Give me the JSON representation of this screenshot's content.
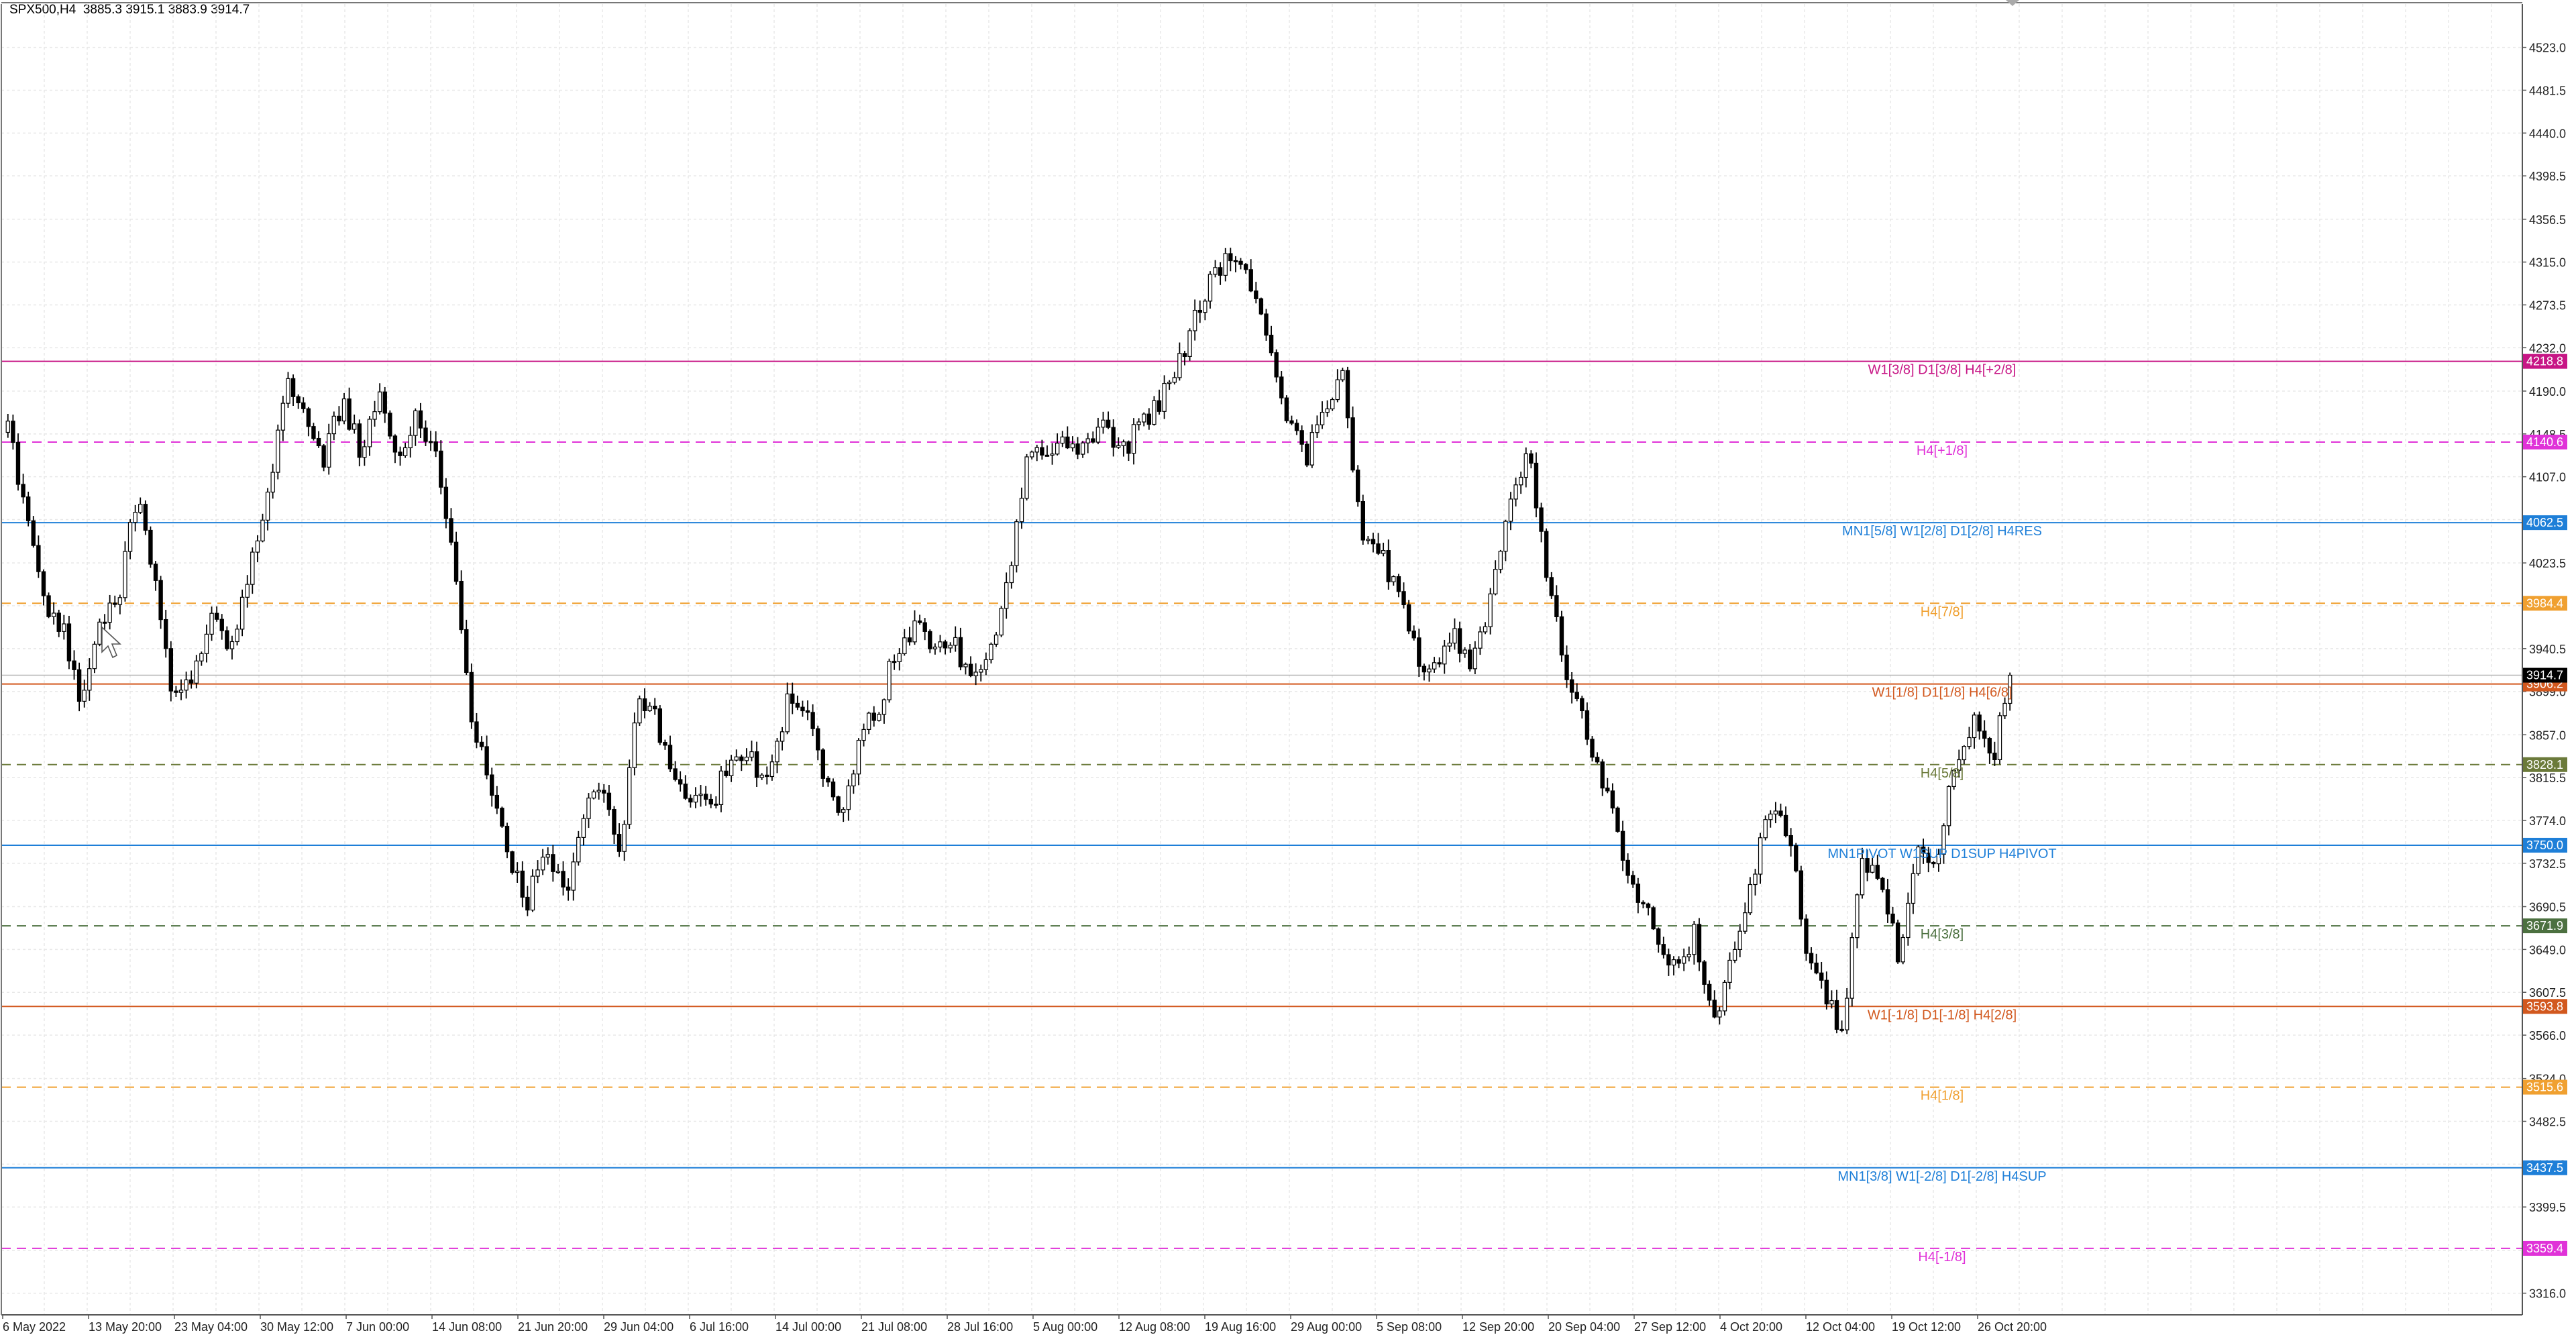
{
  "header": {
    "symbol": "SPX500,H4",
    "open": "3885.3",
    "high": "3915.1",
    "low": "3883.9",
    "close": "3914.7"
  },
  "chart_data": {
    "type": "candlestick",
    "symbol": "SPX500",
    "timeframe": "H4",
    "grid": true,
    "ylim": [
      3295,
      4565
    ],
    "y_ticks": [
      "4523.0",
      "4481.5",
      "4440.0",
      "4398.5",
      "4356.5",
      "4315.0",
      "4273.5",
      "4232.0",
      "4190.0",
      "4148.5",
      "4107.0",
      "4065.5",
      "4023.5",
      "3982.0",
      "3940.5",
      "3899.0",
      "3857.0",
      "3815.5",
      "3774.0",
      "3732.5",
      "3690.5",
      "3649.0",
      "3607.5",
      "3566.0",
      "3524.0",
      "3482.5",
      "3441.0",
      "3399.5",
      "3357.5",
      "3316.0"
    ],
    "x_labels": [
      "6 May 2022",
      "13 May 20:00",
      "23 May 04:00",
      "30 May 12:00",
      "7 Jun 00:00",
      "14 Jun 08:00",
      "21 Jun 20:00",
      "29 Jun 04:00",
      "6 Jul 16:00",
      "14 Jul 00:00",
      "21 Jul 08:00",
      "28 Jul 16:00",
      "5 Aug 00:00",
      "12 Aug 08:00",
      "19 Aug 16:00",
      "29 Aug 00:00",
      "5 Sep 08:00",
      "12 Sep 20:00",
      "20 Sep 04:00",
      "27 Sep 12:00",
      "4 Oct 20:00",
      "12 Oct 04:00",
      "19 Oct 12:00",
      "26 Oct 20:00"
    ],
    "price_path": [
      4150,
      4075,
      3985,
      3960,
      3880,
      3960,
      3995,
      4095,
      4000,
      3885,
      3920,
      3965,
      3940,
      4020,
      4080,
      4195,
      4170,
      4120,
      4180,
      4135,
      4185,
      4125,
      4165,
      4130,
      4035,
      3880,
      3800,
      3740,
      3690,
      3755,
      3700,
      3775,
      3805,
      3735,
      3890,
      3870,
      3815,
      3795,
      3790,
      3840,
      3840,
      3805,
      3890,
      3885,
      3815,
      3785,
      3855,
      3885,
      3945,
      3960,
      3935,
      3945,
      3905,
      3940,
      4005,
      4125,
      4125,
      4145,
      4135,
      4165,
      4125,
      4155,
      4175,
      4205,
      4265,
      4300,
      4325,
      4290,
      4245,
      4160,
      4125,
      4175,
      4205,
      4055,
      4035,
      3990,
      3935,
      3915,
      3955,
      3925,
      3990,
      4075,
      4140,
      4015,
      3925,
      3865,
      3815,
      3745,
      3700,
      3660,
      3625,
      3665,
      3580,
      3635,
      3705,
      3785,
      3765,
      3655,
      3610,
      3565,
      3745,
      3705,
      3645,
      3755,
      3735,
      3825,
      3875,
      3825,
      3915
    ],
    "current_price": "3914.7",
    "levels": [
      {
        "price": 4218.8,
        "label": "W1[3/8] D1[3/8] H4[+2/8]",
        "tag": "4218.8",
        "color": "#c71585",
        "style": "solid"
      },
      {
        "price": 4140.6,
        "label": "H4[+1/8]",
        "tag": "4140.6",
        "color": "#e032d8",
        "style": "dashed"
      },
      {
        "price": 4062.5,
        "label": "MN1[5/8] W1[2/8] D1[2/8] H4RES",
        "tag": "4062.5",
        "color": "#1e7fd8",
        "style": "solid"
      },
      {
        "price": 3984.4,
        "label": "H4[7/8]",
        "tag": "3984.4",
        "color": "#f0a030",
        "style": "dashed"
      },
      {
        "price": 3906.2,
        "label": "W1[1/8] D1[1/8] H4[6/8]",
        "tag": "3906.2",
        "color": "#d2581e",
        "style": "solid"
      },
      {
        "price": 3828.1,
        "label": "H4[5/8]",
        "tag": "3828.1",
        "color": "#6b7a3a",
        "style": "dashed"
      },
      {
        "price": 3750.0,
        "label": "MN1PIVOT W1SUP D1SUP H4PIVOT",
        "tag": "3750.0",
        "color": "#1e7fd8",
        "style": "solid"
      },
      {
        "price": 3671.9,
        "label": "H4[3/8]",
        "tag": "3671.9",
        "color": "#4c7040",
        "style": "dashed"
      },
      {
        "price": 3593.8,
        "label": "W1[-1/8] D1[-1/8] H4[2/8]",
        "tag": "3593.8",
        "color": "#d2581e",
        "style": "solid"
      },
      {
        "price": 3515.6,
        "label": "H4[1/8]",
        "tag": "3515.6",
        "color": "#f0a030",
        "style": "dashed"
      },
      {
        "price": 3437.5,
        "label": "MN1[3/8] W1[-2/8] D1[-2/8] H4SUP",
        "tag": "3437.5",
        "color": "#1e7fd8",
        "style": "solid"
      },
      {
        "price": 3359.4,
        "label": "H4[-1/8]",
        "tag": "3359.4",
        "color": "#e032d8",
        "style": "dashed"
      }
    ]
  }
}
